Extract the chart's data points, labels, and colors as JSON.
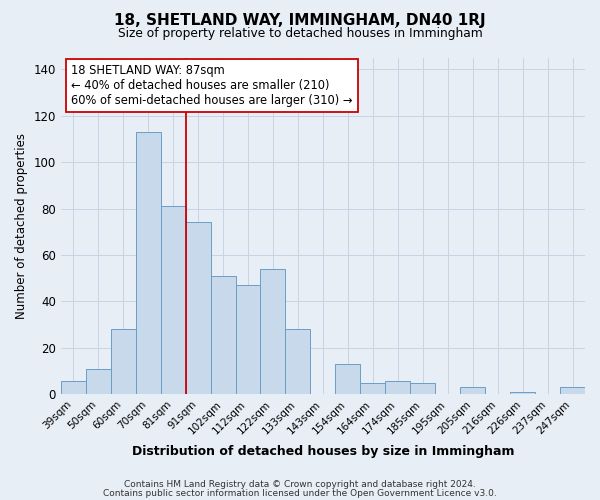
{
  "title": "18, SHETLAND WAY, IMMINGHAM, DN40 1RJ",
  "subtitle": "Size of property relative to detached houses in Immingham",
  "xlabel": "Distribution of detached houses by size in Immingham",
  "ylabel": "Number of detached properties",
  "bar_labels": [
    "39sqm",
    "50sqm",
    "60sqm",
    "70sqm",
    "81sqm",
    "91sqm",
    "102sqm",
    "112sqm",
    "122sqm",
    "133sqm",
    "143sqm",
    "154sqm",
    "164sqm",
    "174sqm",
    "185sqm",
    "195sqm",
    "205sqm",
    "216sqm",
    "226sqm",
    "237sqm",
    "247sqm"
  ],
  "bar_values": [
    6,
    11,
    28,
    113,
    81,
    74,
    51,
    47,
    54,
    28,
    0,
    13,
    5,
    6,
    5,
    0,
    3,
    0,
    1,
    0,
    3
  ],
  "bar_color": "#c9d9ec",
  "bar_edge_color": "#6a9ec5",
  "vline_x": 4.5,
  "vline_color": "#cc0000",
  "ylim": [
    0,
    145
  ],
  "yticks": [
    0,
    20,
    40,
    60,
    80,
    100,
    120,
    140
  ],
  "grid_color": "#c8d4e4",
  "background_color": "#e8eef6",
  "annotation_text": "18 SHETLAND WAY: 87sqm\n← 40% of detached houses are smaller (210)\n60% of semi-detached houses are larger (310) →",
  "annotation_box_color": "#ffffff",
  "annotation_box_edge": "#cc0000",
  "footer_line1": "Contains HM Land Registry data © Crown copyright and database right 2024.",
  "footer_line2": "Contains public sector information licensed under the Open Government Licence v3.0."
}
